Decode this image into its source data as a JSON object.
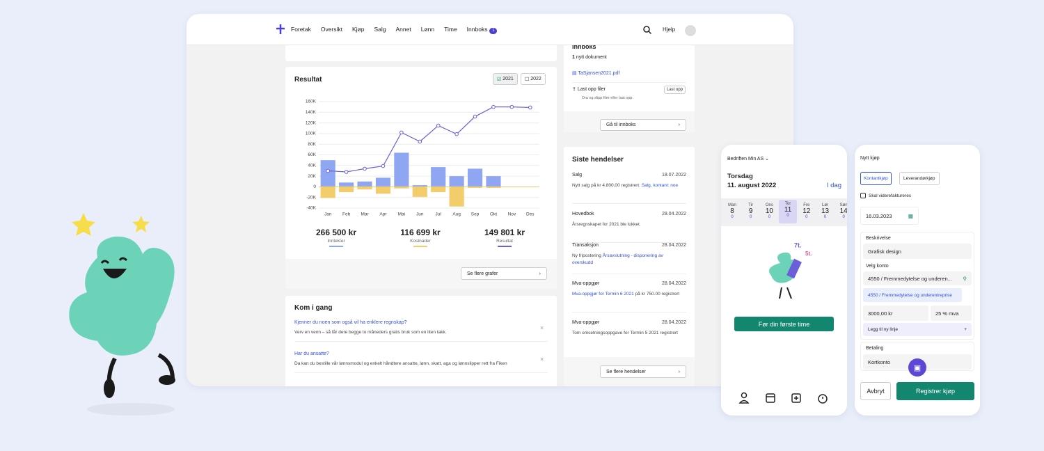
{
  "nav": {
    "items": [
      "Foretak",
      "Oversikt",
      "Kjøp",
      "Salg",
      "Annet",
      "Lønn",
      "Time",
      "Innboks"
    ],
    "badge": "1",
    "help": "Hjelp"
  },
  "inbox": {
    "title": "Innboks",
    "count": "1",
    "count_text": "nytt dokument",
    "file": "TaSjansen2021.pdf",
    "upload": "Last opp filer",
    "upload_hint": "Dra og slipp filer eller last opp.",
    "upload_button": "Last opp",
    "goto": "Gå til innboks"
  },
  "result": {
    "title": "Resultat",
    "toggles": [
      "2021",
      "2022"
    ],
    "chart": {
      "type": "bar-line",
      "categories": [
        "Jan",
        "Feb",
        "Mar",
        "Apr",
        "Mai",
        "Jun",
        "Jul",
        "Aug",
        "Sep",
        "Okt",
        "Nov",
        "Des"
      ],
      "series": [
        {
          "name": "Inntekter",
          "color": "#8fa6f2",
          "values": [
            50,
            8,
            10,
            17,
            64,
            3,
            37,
            20,
            34,
            20,
            0,
            0
          ]
        },
        {
          "name": "Kostnader",
          "color": "#f3cc6b",
          "values": [
            -21,
            -10,
            -5,
            -13,
            -3,
            -19,
            -10,
            -37,
            -2,
            -2,
            0,
            0
          ]
        },
        {
          "name": "Resultat",
          "type": "line",
          "color": "#6a5fd8",
          "values": [
            30,
            28,
            34,
            39,
            102,
            85,
            115,
            99,
            132,
            150,
            150,
            149
          ]
        }
      ],
      "ylim": [
        -40,
        160
      ],
      "yticks": [
        {
          "value": -40,
          "label": "-40K"
        },
        {
          "value": -20,
          "label": "-20K"
        },
        0,
        {
          "value": 20,
          "label": "20K"
        },
        {
          "value": 40,
          "label": "40K"
        },
        {
          "value": 60,
          "label": "60K"
        },
        {
          "value": 80,
          "label": "80K"
        },
        {
          "value": 100,
          "label": "100K"
        },
        {
          "value": 120,
          "label": "120K"
        },
        {
          "value": 140,
          "label": "140K"
        },
        {
          "value": 160,
          "label": "160K"
        }
      ],
      "grid": true
    },
    "totals": [
      "266 500 kr",
      "116 699 kr",
      "149 801 kr"
    ],
    "more": "Se flere grafer"
  },
  "events": {
    "title": "Siste hendelser",
    "items": [
      {
        "type": "Salg",
        "date": "18.07.2022",
        "segments": [
          {
            "text": "Nytt salg på kr 4.800,00 registrert: "
          },
          {
            "link": "Salg, kontant: noe"
          }
        ]
      },
      {
        "type": "Hovedbok",
        "date": "28.04.2022",
        "segments": [
          {
            "text": "Årsregnskapet for 2021 ble lukket."
          }
        ]
      },
      {
        "type": "Transaksjon",
        "date": "28.04.2022",
        "segments": [
          {
            "text": "Ny fripostering "
          },
          {
            "link": "Årsavslutning - disponering av overskudd"
          }
        ]
      },
      {
        "type": "Mva-oppgjør",
        "date": "28.04.2022",
        "segments": [
          {
            "link": "Mva-oppgjør for Termin 6 2021"
          },
          {
            "text": " på kr 750.00 registrert"
          }
        ]
      },
      {
        "type": "Mva-oppgjør",
        "date": "28.04.2022",
        "segments": [
          {
            "text": "Tom omsetningsoppgave for Termin 5 2021 registrert"
          }
        ]
      }
    ],
    "more": "Se flere hendelser"
  },
  "start": {
    "title": "Kom i gang",
    "items": [
      {
        "question": "Kjenner du noen som også vil ha enklere regnskap?",
        "answer": "Verv en venn – så får dere begge to måneders gratis bruk som en liten takk."
      },
      {
        "question": "Har du ansatte?",
        "answer": "Da kan du bestille vår lønnsmodul og enkelt håndtere ansatte, lønn, skatt, aga og lønnslipper rett fra Fiken"
      }
    ]
  },
  "calendar": {
    "company": "Bedriften Min AS",
    "weekday": "Torsdag",
    "date": "11. august 2022",
    "today": "I dag",
    "days": [
      {
        "name": "Man",
        "day": 8,
        "hours": 0
      },
      {
        "name": "Tir",
        "day": 9,
        "hours": 0
      },
      {
        "name": "Ons",
        "day": 10,
        "hours": 0
      },
      {
        "name": "Tor",
        "day": 11,
        "hours": 0
      },
      {
        "name": "Fre",
        "day": 12,
        "hours": 0
      },
      {
        "name": "Lør",
        "day": 13,
        "hours": 0
      },
      {
        "name": "Søn",
        "day": 14,
        "hours": 0
      }
    ],
    "button": "Før din første time"
  },
  "purchase": {
    "title": "Nytt kjøp",
    "tabs": [
      "Kontantkjøp",
      "Leverandørkjøp"
    ],
    "rebill": "Skal viderefaktureres",
    "date": "16.03.2023",
    "description_label": "Beskrivelse",
    "description": "Grafisk design",
    "account_label": "Velg konto",
    "account": "4550 / Fremmedytelse og underen...",
    "suggestion": "4550 / Fremmedytelse og underentreprise",
    "amount": "3000,00 kr",
    "vat": "25 % mva",
    "add_line": "Legg til ny linje",
    "payment_label": "Betaling",
    "payment": "Kortkonto",
    "cancel": "Avbryt",
    "submit": "Registrer kjøp"
  }
}
